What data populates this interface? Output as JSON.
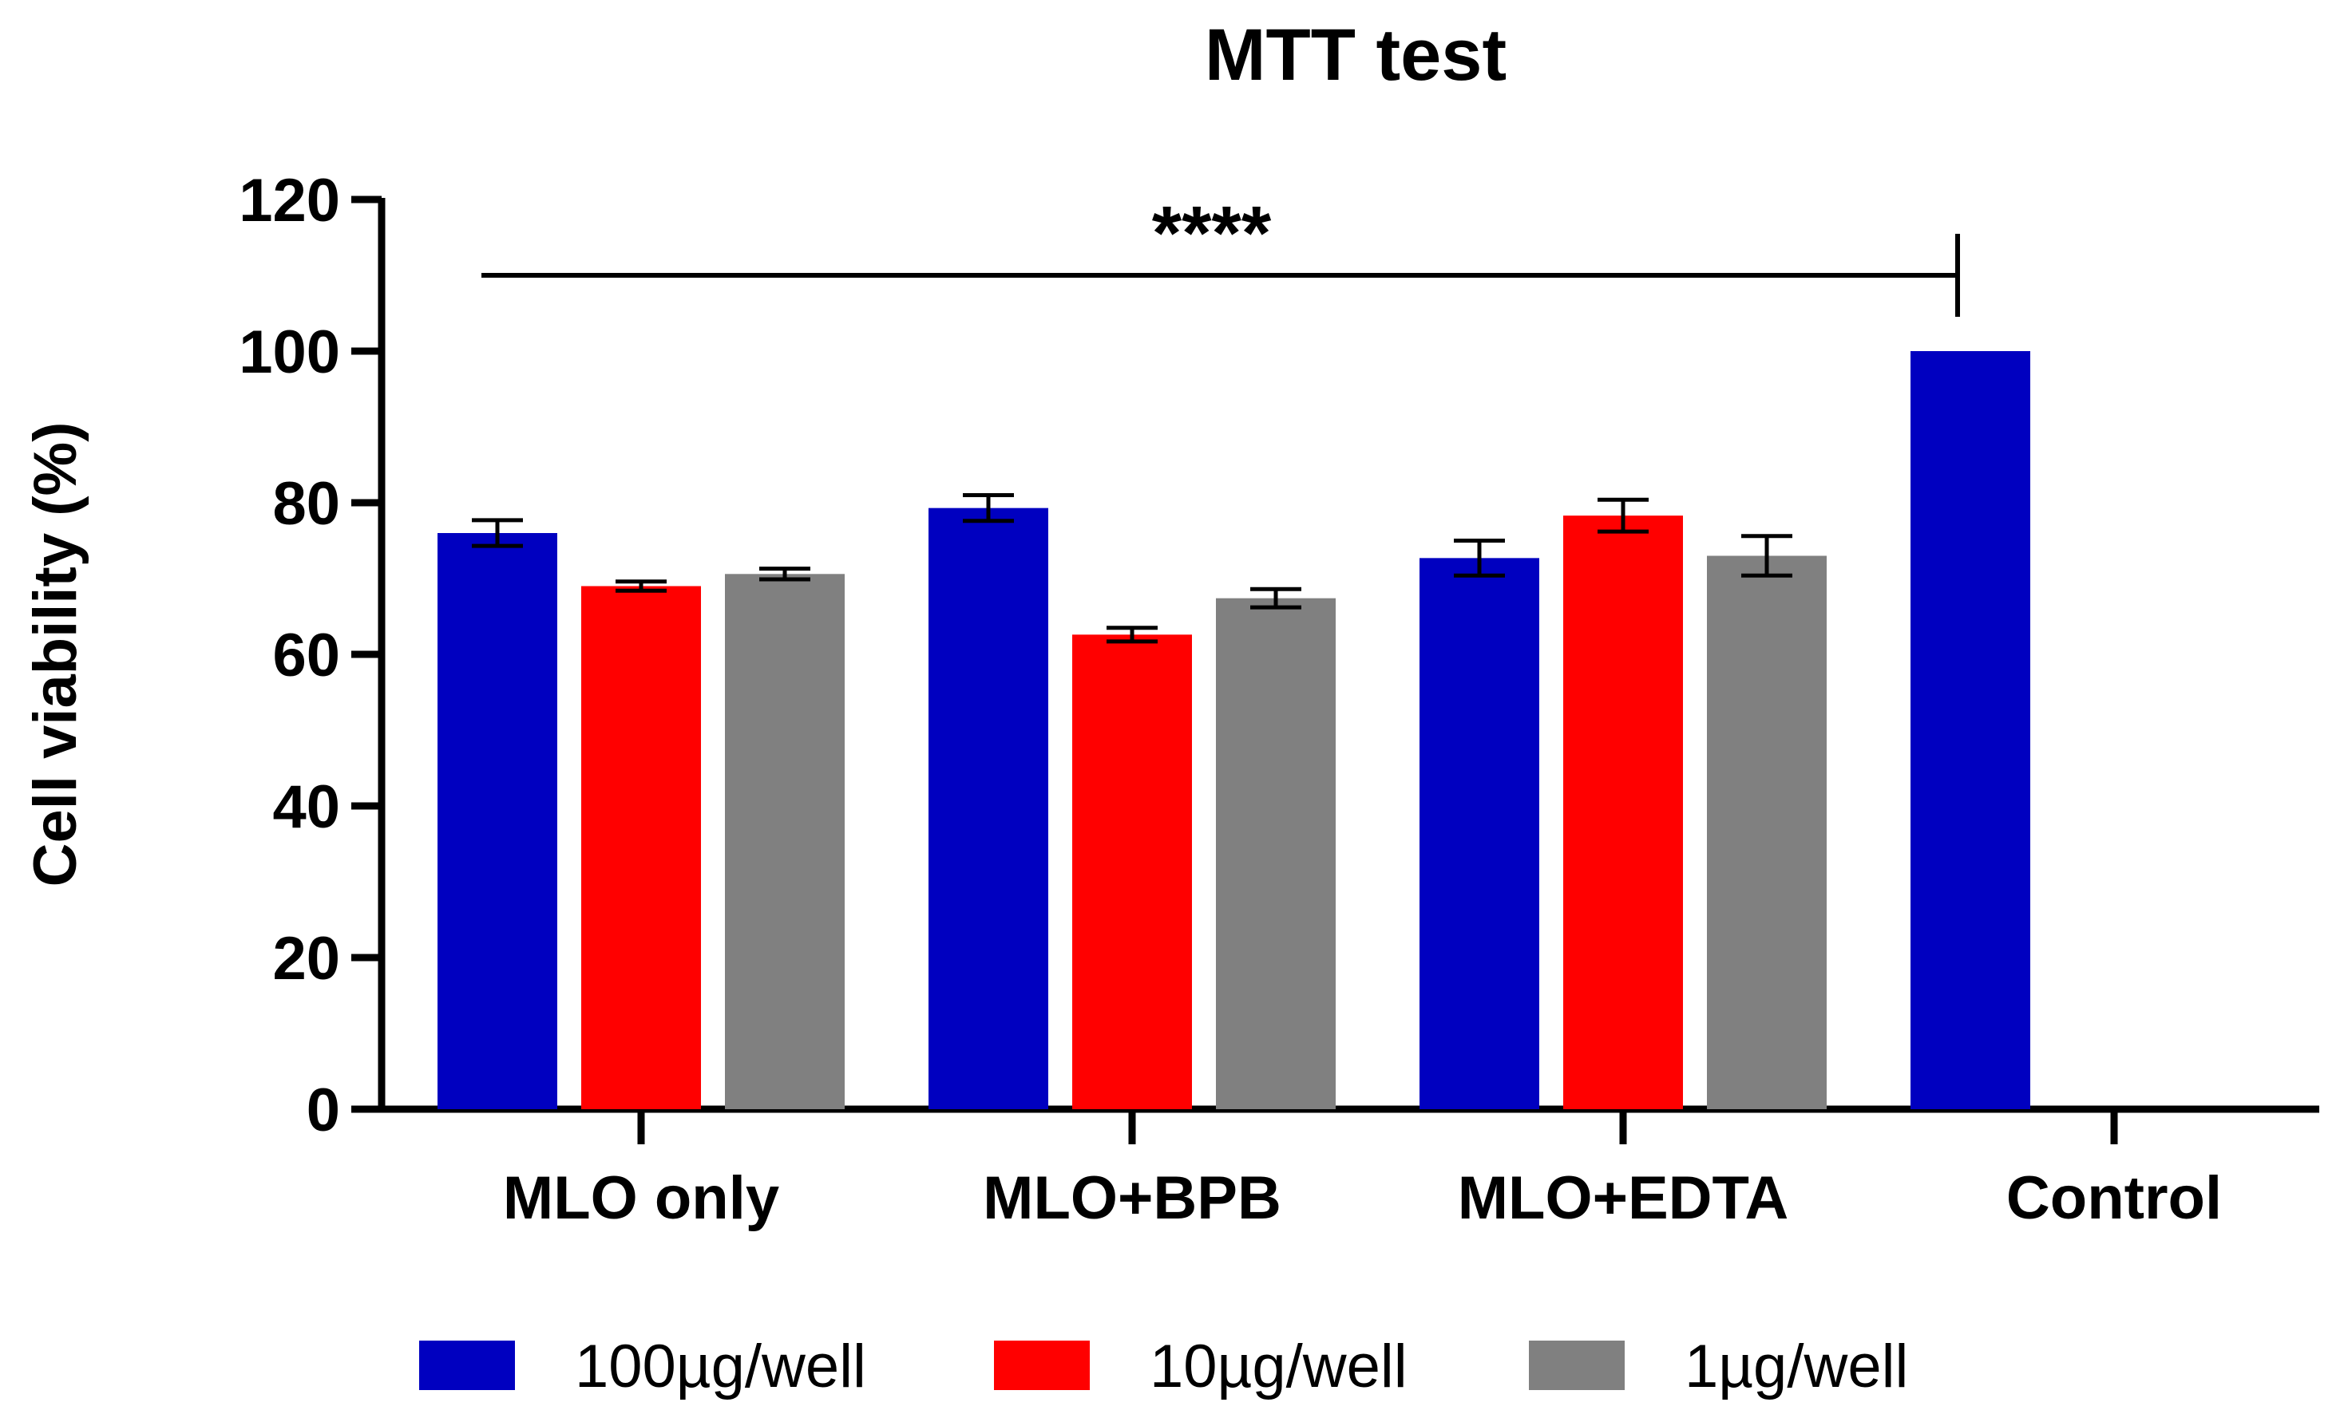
{
  "chart_data": {
    "type": "bar",
    "title": "MTT test",
    "xlabel": "",
    "ylabel": "Cell viability (%)",
    "ylim": [
      0,
      120
    ],
    "yticks": [
      0,
      20,
      40,
      60,
      80,
      100,
      120
    ],
    "categories": [
      "MLO only",
      "MLO+BPB",
      "MLO+EDTA",
      "Control"
    ],
    "series": [
      {
        "name": "100µg/well",
        "color": "#0000c0",
        "values": [
          76,
          79.3,
          72.7,
          100
        ],
        "errors": [
          1.7,
          1.7,
          2.3,
          null
        ]
      },
      {
        "name": "10µg/well",
        "color": "#ff0000",
        "values": [
          69,
          62.6,
          78.3,
          null
        ],
        "errors": [
          0.6,
          0.9,
          2.1,
          null
        ]
      },
      {
        "name": "1µg/well",
        "color": "#808080",
        "values": [
          70.6,
          67.4,
          73,
          null
        ],
        "errors": [
          0.7,
          1.2,
          2.6,
          null
        ]
      }
    ],
    "significance": {
      "label": "****",
      "from": "MLO only",
      "to": "Control",
      "y": 110
    },
    "legend_position": "bottom-center"
  }
}
